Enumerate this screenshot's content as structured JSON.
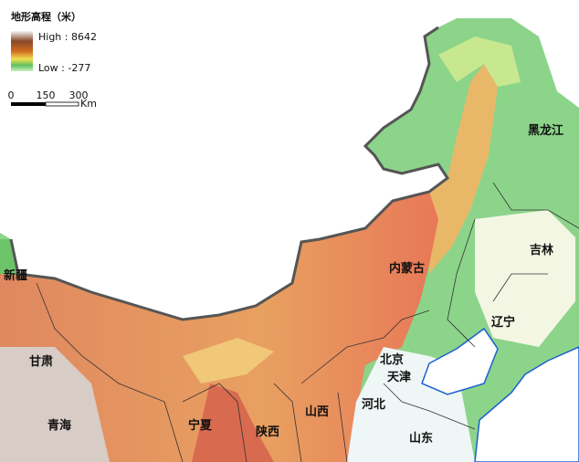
{
  "legend": {
    "title": "地形高程（米）",
    "high": "High : 8642",
    "low": "Low : -277"
  },
  "scale_bar": {
    "ticks": [
      "0",
      "150",
      "300"
    ],
    "unit": "Km"
  },
  "regions": [
    "黑龙江",
    "吉林",
    "内蒙古",
    "辽宁",
    "新疆",
    "北京",
    "天津",
    "甘肃",
    "河北",
    "山西",
    "青海",
    "宁夏",
    "陕西",
    "山东"
  ]
}
